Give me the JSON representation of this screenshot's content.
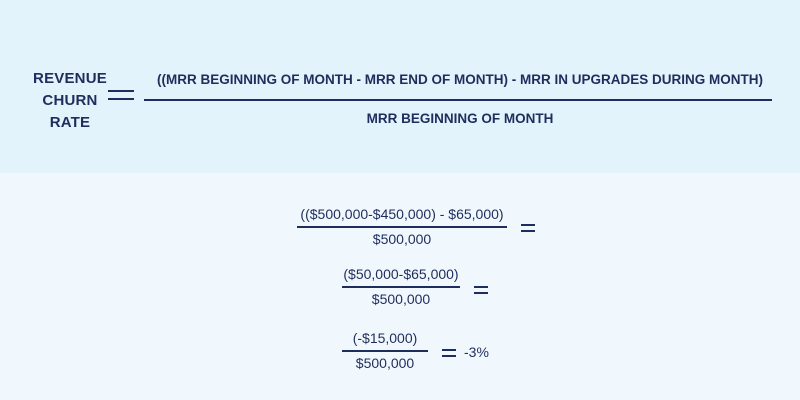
{
  "definition": {
    "term_lines": [
      "REVENUE",
      "CHURN",
      "RATE"
    ],
    "numerator": "((MRR BEGINNING OF MONTH - MRR END OF MONTH) - MRR IN UPGRADES DURING MONTH)",
    "denominator": "MRR BEGINNING OF MONTH"
  },
  "example": {
    "step1": {
      "numerator": "(($500,000-$450,000) - $65,000)",
      "denominator": "$500,000"
    },
    "step2": {
      "numerator": "($50,000-$65,000)",
      "denominator": "$500,000"
    },
    "step3": {
      "numerator": "(-$15,000)",
      "denominator": "$500,000"
    },
    "result": "-3%"
  },
  "colors": {
    "top_band": "#e2f3fb",
    "bottom_band": "#f1f8fd",
    "text": "#1f2d5c"
  }
}
